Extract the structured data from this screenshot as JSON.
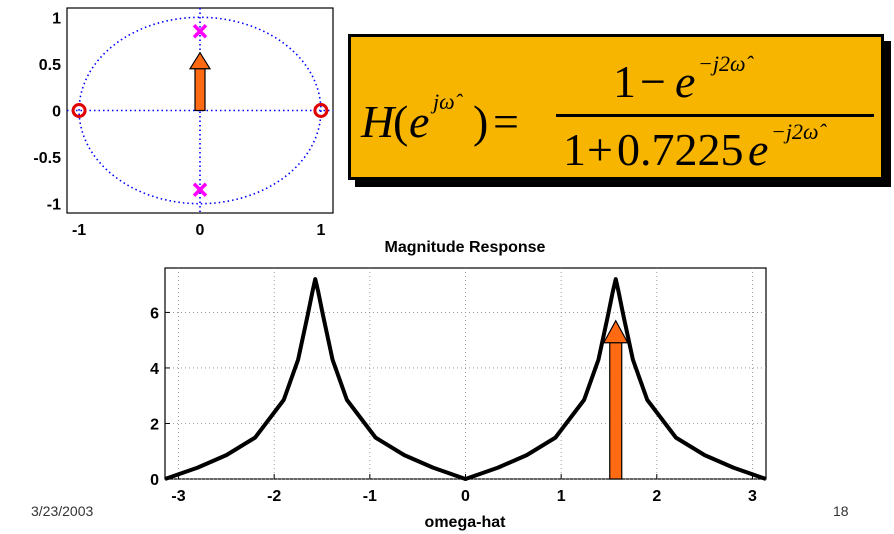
{
  "pz_plot": {
    "x_ticks": [
      "-1",
      "0",
      "1"
    ],
    "y_ticks": [
      "1",
      "0.5",
      "0",
      "-0.5",
      "-1"
    ],
    "xlim": [
      -1.1,
      1.1
    ],
    "ylim": [
      -1.1,
      1.1
    ],
    "zeros": [
      [
        -1,
        0
      ],
      [
        1,
        0
      ]
    ],
    "poles": [
      [
        0,
        0.85
      ],
      [
        0,
        -0.85
      ]
    ],
    "unit_circle": true,
    "colors": {
      "circle": "#0000ff",
      "zero": "#e00000",
      "pole": "#ff00ff",
      "arrow": "#ff6a13"
    }
  },
  "equation": {
    "lhs_H": "H",
    "lhs_open": "(",
    "lhs_e": "e",
    "lhs_exp": "jω̂",
    "lhs_close": ")",
    "equals": "=",
    "num_one": "1",
    "num_minus": "−",
    "num_e": "e",
    "num_exp": "−j2ω̂",
    "den_one": "1",
    "den_plus": "+",
    "den_coef": "0.7225",
    "den_e": "e",
    "den_exp": "−j2ω̂",
    "box_color": "#f7b500"
  },
  "chart_data": {
    "type": "line",
    "title": "Magnitude Response",
    "xlabel": "omega-hat",
    "ylabel": "",
    "xlim": [
      -3.14159,
      3.14159
    ],
    "ylim": [
      0,
      7.6
    ],
    "x_ticks": [
      -3,
      -2,
      -1,
      0,
      1,
      2,
      3
    ],
    "y_ticks": [
      0,
      2,
      4,
      6
    ],
    "grid": true,
    "series": [
      {
        "formula": "|1 - e^{-j2w}| / |1 + 0.7225 e^{-j2w}|",
        "color": "#000000",
        "x": [
          -3.14159,
          -2.8,
          -2.5,
          -2.2,
          -1.9,
          -1.75,
          -1.65,
          -1.6,
          -1.5708,
          -1.54,
          -1.49,
          -1.39,
          -1.24,
          -0.94,
          -0.64,
          -0.34,
          0,
          0.34,
          0.64,
          0.94,
          1.24,
          1.39,
          1.49,
          1.54,
          1.5708,
          1.6,
          1.65,
          1.75,
          1.9,
          2.2,
          2.5,
          2.8,
          3.14159
        ],
        "y": [
          0,
          0.41,
          0.86,
          1.49,
          2.85,
          4.3,
          5.9,
          6.75,
          7.2,
          6.75,
          5.9,
          4.3,
          2.85,
          1.49,
          0.86,
          0.41,
          0,
          0.41,
          0.86,
          1.49,
          2.85,
          4.3,
          5.9,
          6.75,
          7.2,
          6.75,
          5.9,
          4.3,
          2.85,
          1.49,
          0.86,
          0.41,
          0
        ]
      }
    ],
    "annotations": [
      {
        "type": "arrow",
        "x": 1.5708,
        "y_from": 0,
        "y_to": 5.7,
        "color": "#ff6a13"
      }
    ]
  },
  "footer": {
    "date": "3/23/2003",
    "page": "18"
  }
}
